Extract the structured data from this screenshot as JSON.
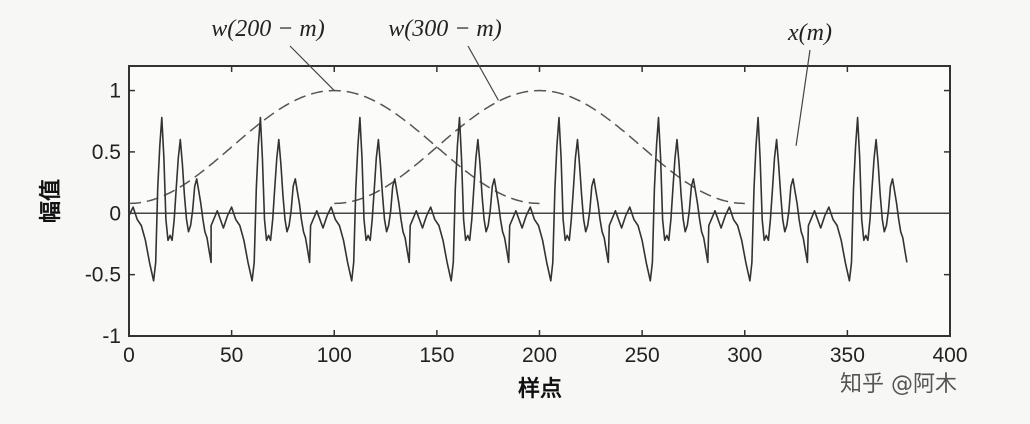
{
  "chart_data": {
    "type": "line",
    "title": "",
    "xlabel": "样点",
    "ylabel": "幅值",
    "xlim": [
      0,
      400
    ],
    "ylim": [
      -1,
      1.2
    ],
    "x_ticks": [
      0,
      50,
      100,
      150,
      200,
      250,
      300,
      350,
      400
    ],
    "y_ticks": [
      -1,
      -0.5,
      0,
      0.5,
      1
    ],
    "x_tick_labels": [
      "0",
      "50",
      "100",
      "150",
      "200",
      "250",
      "300",
      "350",
      "400"
    ],
    "y_tick_labels": [
      "-1",
      "-0.5",
      "0",
      "0.5",
      "1"
    ],
    "grid": false,
    "zero_line": true,
    "series": [
      {
        "name": "x(m)",
        "style": "solid",
        "color": "#333333",
        "period": 48.5,
        "cycle_template": [
          [
            0,
            -0.1
          ],
          [
            3,
            0.02
          ],
          [
            6,
            -0.12
          ],
          [
            8,
            -0.02
          ],
          [
            10,
            0.05
          ],
          [
            12,
            -0.05
          ],
          [
            14,
            -0.1
          ],
          [
            16,
            -0.22
          ],
          [
            18,
            -0.4
          ],
          [
            20,
            -0.55
          ],
          [
            21,
            -0.4
          ],
          [
            22,
            0.2
          ],
          [
            23,
            0.55
          ],
          [
            24,
            0.78
          ],
          [
            25,
            0.45
          ],
          [
            26,
            -0.05
          ],
          [
            27,
            -0.22
          ],
          [
            28,
            -0.18
          ],
          [
            29,
            -0.22
          ],
          [
            30,
            -0.05
          ],
          [
            31,
            0.2
          ],
          [
            32,
            0.45
          ],
          [
            33,
            0.6
          ],
          [
            34,
            0.4
          ],
          [
            35,
            0.15
          ],
          [
            36,
            -0.05
          ],
          [
            37,
            -0.15
          ],
          [
            38,
            -0.1
          ],
          [
            39,
            0.02
          ],
          [
            40,
            0.22
          ],
          [
            41,
            0.28
          ],
          [
            42,
            0.18
          ],
          [
            43,
            0.08
          ],
          [
            44,
            -0.05
          ],
          [
            45,
            -0.15
          ],
          [
            46,
            -0.2
          ],
          [
            47,
            -0.3
          ],
          [
            48,
            -0.4
          ]
        ],
        "cycle_starts": [
          -8,
          40,
          88.5,
          137,
          185.5,
          234,
          282.5,
          331
        ]
      },
      {
        "name": "w(200 − m)",
        "style": "dashed",
        "color": "#555555",
        "window": "hamming",
        "x": [
          0,
          200
        ],
        "peak": 1.0,
        "peak_at": 100,
        "edge_value": 0.08
      },
      {
        "name": "w(300 − m)",
        "style": "dashed",
        "color": "#555555",
        "window": "hamming",
        "x": [
          100,
          300
        ],
        "peak": 1.0,
        "peak_at": 200,
        "edge_value": 0.08
      }
    ],
    "annotations": [
      {
        "text": "w(200 − m)",
        "target_x": 100,
        "target_y": 1.0
      },
      {
        "text": "w(300 − m)",
        "target_x": 180,
        "target_y": 0.92
      },
      {
        "text": "x(m)",
        "target_x": 325,
        "target_y": 0.55
      }
    ]
  },
  "watermark": "知乎 @阿木"
}
